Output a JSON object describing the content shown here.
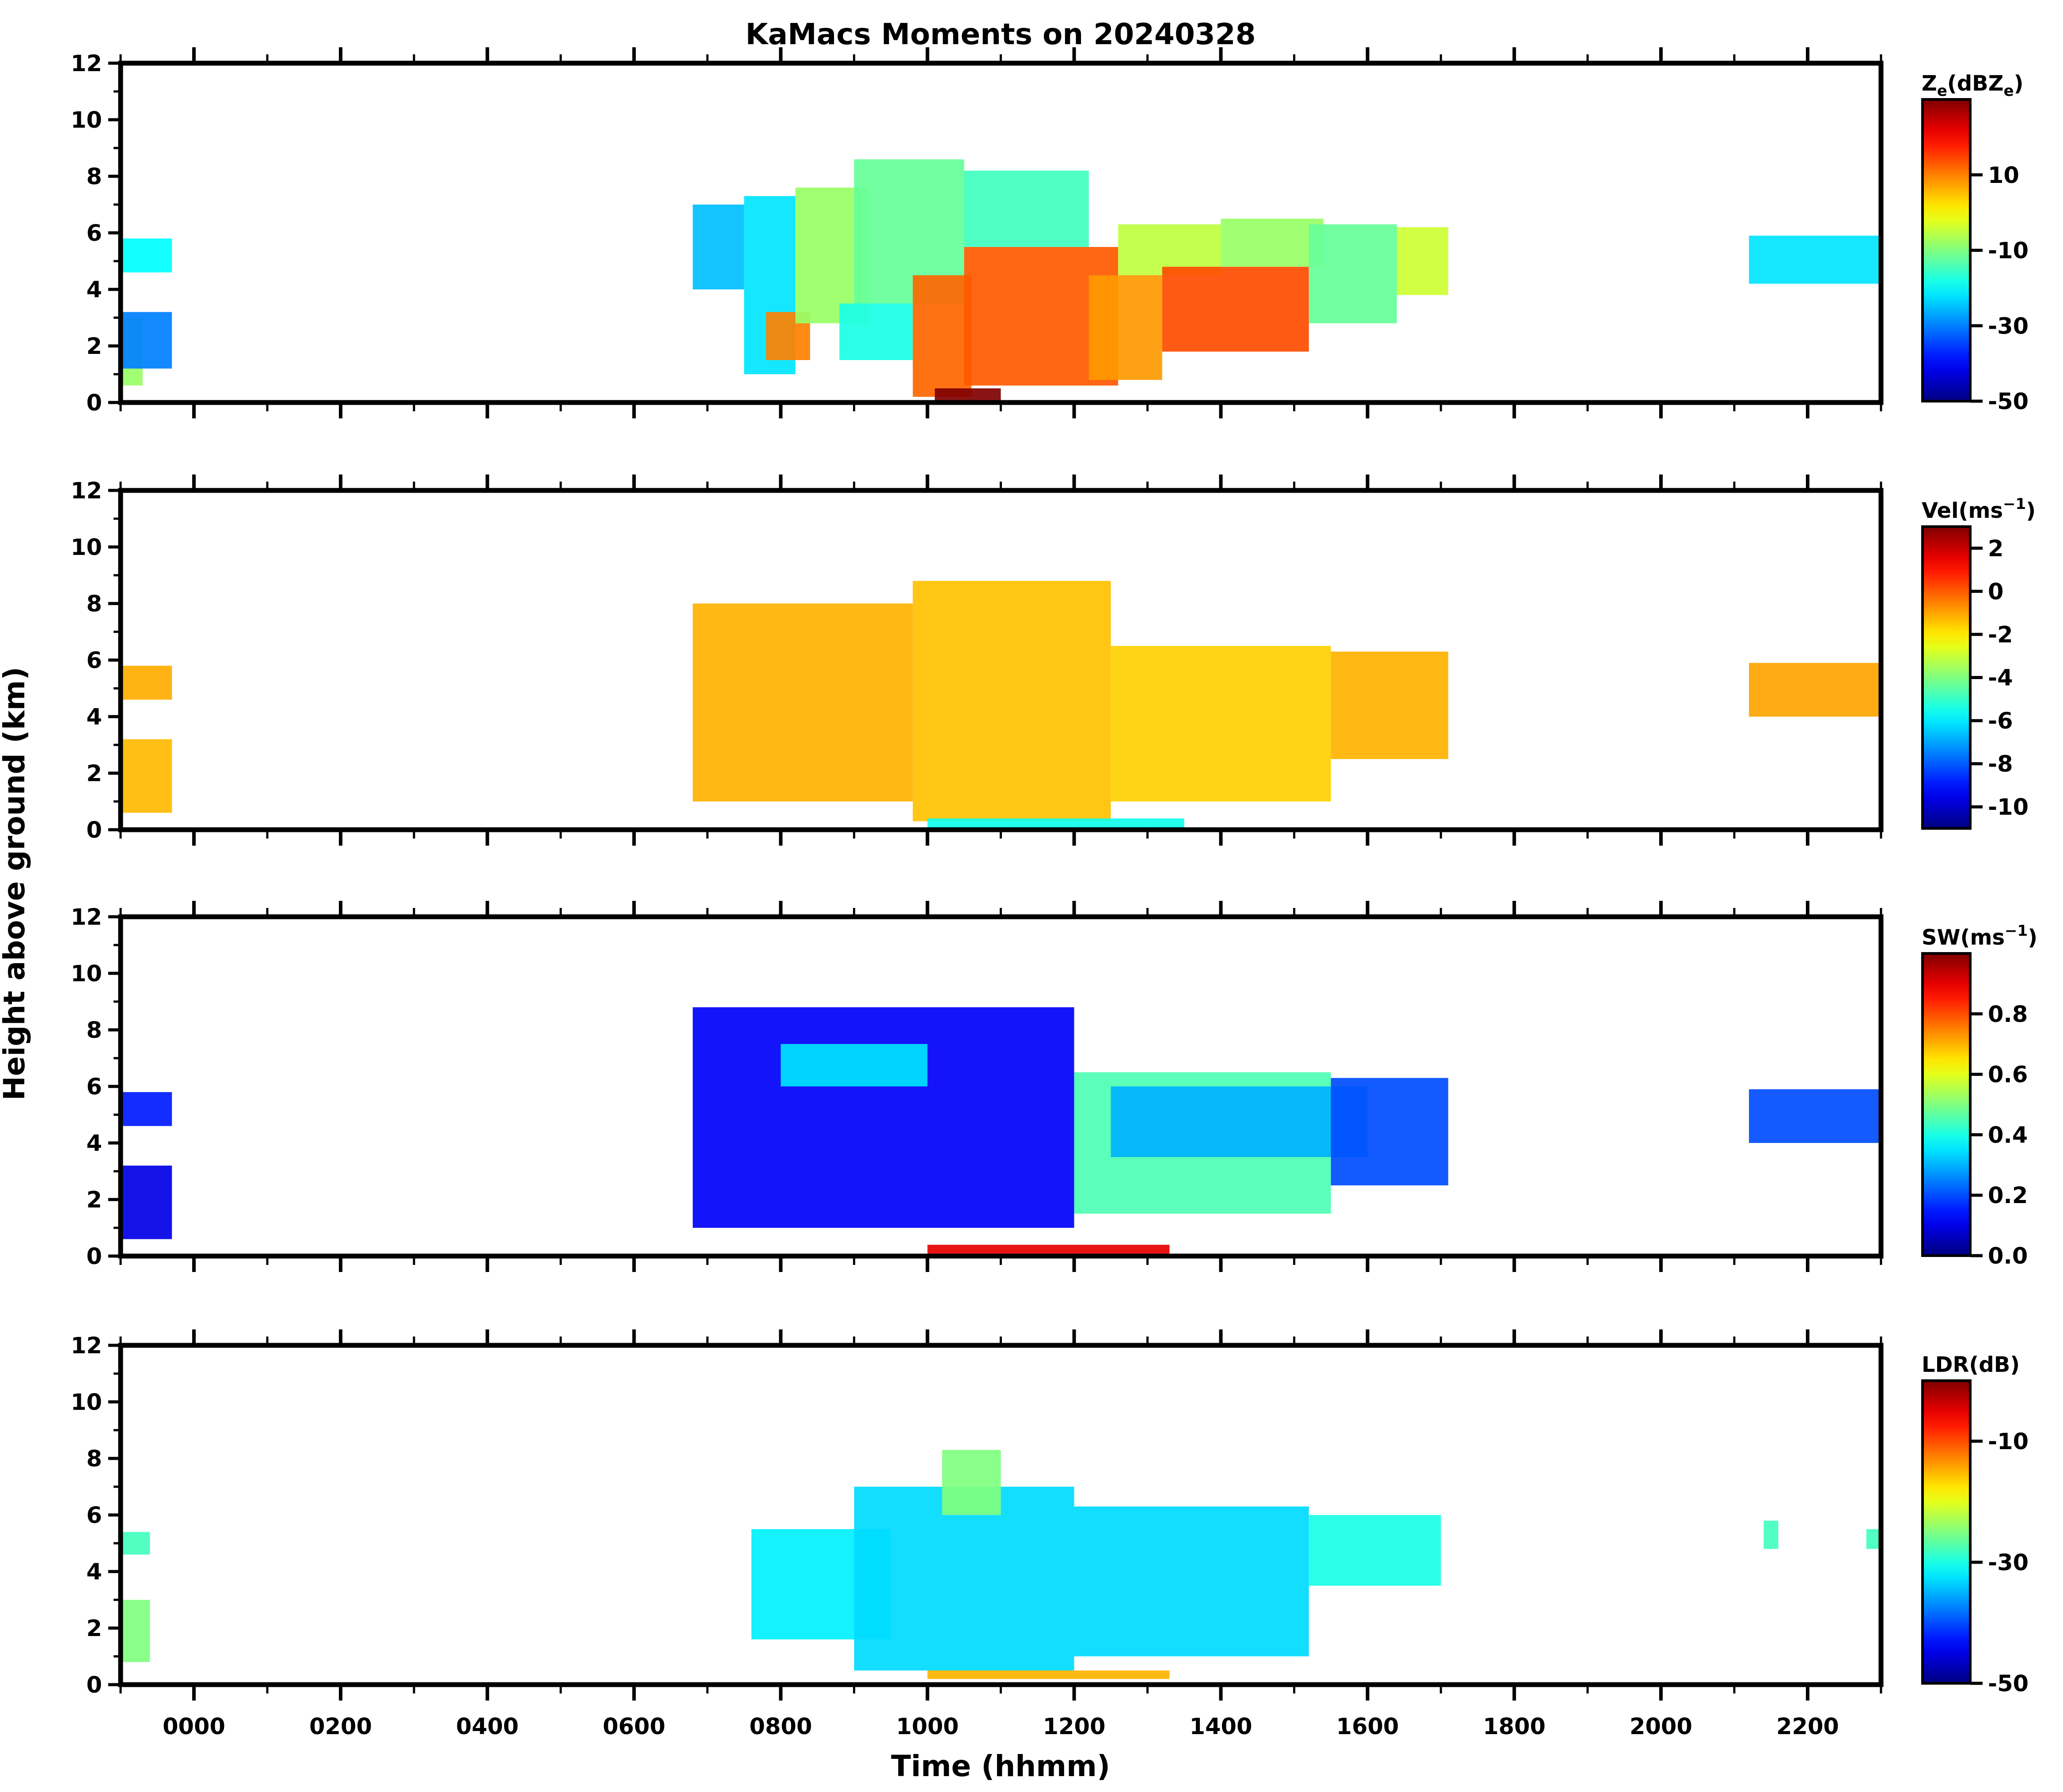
{
  "chart_data": {
    "type": "heatmap",
    "title": "KaMacs Moments on 20240328",
    "xlabel": "Time (hhmm)",
    "ylabel": "Height above ground (km)",
    "x_domain_hours": [
      -1,
      23
    ],
    "x_ticks": [
      0,
      2,
      4,
      6,
      8,
      10,
      12,
      14,
      16,
      18,
      20,
      22
    ],
    "x_ticklabels": [
      "0000",
      "0200",
      "0400",
      "0600",
      "0800",
      "1000",
      "1200",
      "1400",
      "1600",
      "1800",
      "2000",
      "2200"
    ],
    "ylim": [
      0,
      12
    ],
    "y_ticks": [
      0,
      2,
      4,
      6,
      8,
      10,
      12
    ],
    "panels": [
      {
        "name": "Ze",
        "colorbar_label": "Ze(dBZe)",
        "colorbar_label_main": "Z",
        "colorbar_label_sub": "e",
        "colorbar_label_mid": "(dBZ",
        "colorbar_label_sub2": "e",
        "colorbar_label_end": ")",
        "clim": [
          -50,
          30
        ],
        "cbar_ticks": [
          -50,
          -30,
          -10,
          10
        ],
        "cells": [
          {
            "t0": -1.0,
            "t1": -0.7,
            "z0": 0.6,
            "z1": 3.0,
            "v": -8
          },
          {
            "t0": -1.0,
            "t1": -0.3,
            "z0": 1.2,
            "z1": 3.2,
            "v": -30
          },
          {
            "t0": -1.0,
            "t1": -0.3,
            "z0": 4.6,
            "z1": 5.8,
            "v": -20
          },
          {
            "t0": 6.8,
            "t1": 7.5,
            "z0": 4.0,
            "z1": 7.0,
            "v": -25
          },
          {
            "t0": 7.5,
            "t1": 8.2,
            "z0": 1.0,
            "z1": 7.3,
            "v": -22
          },
          {
            "t0": 7.8,
            "t1": 8.4,
            "z0": 1.5,
            "z1": 3.2,
            "v": 10
          },
          {
            "t0": 8.2,
            "t1": 9.2,
            "z0": 2.8,
            "z1": 7.6,
            "v": -8
          },
          {
            "t0": 8.8,
            "t1": 9.8,
            "z0": 1.5,
            "z1": 3.5,
            "v": -18
          },
          {
            "t0": 9.0,
            "t1": 10.5,
            "z0": 3.5,
            "z1": 8.6,
            "v": -12
          },
          {
            "t0": 9.8,
            "t1": 10.6,
            "z0": 0.2,
            "z1": 4.5,
            "v": 12
          },
          {
            "t0": 10.5,
            "t1": 12.2,
            "z0": 5.5,
            "z1": 8.2,
            "v": -15
          },
          {
            "t0": 10.5,
            "t1": 12.6,
            "z0": 0.6,
            "z1": 5.5,
            "v": 13
          },
          {
            "t0": 12.2,
            "t1": 13.2,
            "z0": 0.8,
            "z1": 4.5,
            "v": 8
          },
          {
            "t0": 12.6,
            "t1": 14.0,
            "z0": 4.5,
            "z1": 6.3,
            "v": -5
          },
          {
            "t0": 13.2,
            "t1": 15.2,
            "z0": 1.8,
            "z1": 4.8,
            "v": 14
          },
          {
            "t0": 14.0,
            "t1": 15.4,
            "z0": 4.8,
            "z1": 6.5,
            "v": -8
          },
          {
            "t0": 15.2,
            "t1": 16.4,
            "z0": 2.8,
            "z1": 6.3,
            "v": -12
          },
          {
            "t0": 16.4,
            "t1": 17.1,
            "z0": 3.8,
            "z1": 6.2,
            "v": -4
          },
          {
            "t0": 21.2,
            "t1": 23.0,
            "z0": 4.2,
            "z1": 5.9,
            "v": -22
          },
          {
            "t0": 10.1,
            "t1": 11.0,
            "z0": 0.0,
            "z1": 0.5,
            "v": 30
          }
        ]
      },
      {
        "name": "Vel",
        "colorbar_label": "Vel(ms−1)",
        "colorbar_label_main": "Vel(ms",
        "colorbar_label_sup": "−1",
        "colorbar_label_end": ")",
        "clim": [
          -11,
          3
        ],
        "cbar_ticks": [
          -10,
          -8,
          -6,
          -4,
          -2,
          0,
          2
        ],
        "cells": [
          {
            "t0": -1.0,
            "t1": -0.3,
            "z0": 0.6,
            "z1": 3.2,
            "v": -1.3
          },
          {
            "t0": -1.0,
            "t1": -0.3,
            "z0": 4.6,
            "z1": 5.8,
            "v": -1.1
          },
          {
            "t0": 6.8,
            "t1": 9.8,
            "z0": 1.0,
            "z1": 8.0,
            "v": -1.2
          },
          {
            "t0": 9.8,
            "t1": 12.5,
            "z0": 0.3,
            "z1": 8.8,
            "v": -1.4
          },
          {
            "t0": 12.5,
            "t1": 15.5,
            "z0": 1.0,
            "z1": 6.5,
            "v": -1.6
          },
          {
            "t0": 15.5,
            "t1": 17.1,
            "z0": 2.5,
            "z1": 6.3,
            "v": -1.2
          },
          {
            "t0": 10.0,
            "t1": 13.5,
            "z0": 0.0,
            "z1": 0.4,
            "v": -5.5
          },
          {
            "t0": 21.2,
            "t1": 23.0,
            "z0": 4.0,
            "z1": 5.9,
            "v": -1.0
          }
        ]
      },
      {
        "name": "SW",
        "colorbar_label": "SW(ms−1)",
        "colorbar_label_main": "SW(ms",
        "colorbar_label_sup": "−1",
        "colorbar_label_end": ")",
        "clim": [
          0.0,
          1.0
        ],
        "cbar_ticks": [
          0.0,
          0.2,
          0.4,
          0.6,
          0.8
        ],
        "cells": [
          {
            "t0": -1.0,
            "t1": -0.3,
            "z0": 0.6,
            "z1": 3.2,
            "v": 0.1
          },
          {
            "t0": -1.0,
            "t1": -0.3,
            "z0": 4.6,
            "z1": 5.8,
            "v": 0.15
          },
          {
            "t0": 6.8,
            "t1": 12.0,
            "z0": 1.0,
            "z1": 8.8,
            "v": 0.12
          },
          {
            "t0": 8.0,
            "t1": 10.0,
            "z0": 6.0,
            "z1": 7.5,
            "v": 0.35
          },
          {
            "t0": 12.0,
            "t1": 15.5,
            "z0": 1.5,
            "z1": 6.5,
            "v": 0.45
          },
          {
            "t0": 12.5,
            "t1": 16.0,
            "z0": 3.5,
            "z1": 6.0,
            "v": 0.3
          },
          {
            "t0": 15.5,
            "t1": 17.1,
            "z0": 2.5,
            "z1": 6.3,
            "v": 0.2
          },
          {
            "t0": 10.0,
            "t1": 13.3,
            "z0": 0.0,
            "z1": 0.4,
            "v": 0.9
          },
          {
            "t0": 21.2,
            "t1": 23.0,
            "z0": 4.0,
            "z1": 5.9,
            "v": 0.2
          }
        ]
      },
      {
        "name": "LDR",
        "colorbar_label": "LDR(dB)",
        "colorbar_label_main": "LDR(dB)",
        "clim": [
          -50,
          0
        ],
        "cbar_ticks": [
          -50,
          -30,
          -10
        ],
        "cells": [
          {
            "t0": -1.0,
            "t1": -0.6,
            "z0": 0.8,
            "z1": 3.0,
            "v": -25
          },
          {
            "t0": -1.0,
            "t1": -0.6,
            "z0": 4.6,
            "z1": 5.4,
            "v": -28
          },
          {
            "t0": 7.6,
            "t1": 9.5,
            "z0": 1.6,
            "z1": 5.5,
            "v": -32
          },
          {
            "t0": 9.0,
            "t1": 12.0,
            "z0": 0.5,
            "z1": 7.0,
            "v": -33
          },
          {
            "t0": 10.2,
            "t1": 11.0,
            "z0": 6.0,
            "z1": 8.3,
            "v": -25
          },
          {
            "t0": 12.0,
            "t1": 15.2,
            "z0": 1.0,
            "z1": 6.3,
            "v": -33
          },
          {
            "t0": 15.2,
            "t1": 17.0,
            "z0": 3.5,
            "z1": 6.0,
            "v": -30
          },
          {
            "t0": 10.0,
            "t1": 13.3,
            "z0": 0.2,
            "z1": 0.5,
            "v": -15
          },
          {
            "t0": 21.4,
            "t1": 21.6,
            "z0": 4.8,
            "z1": 5.8,
            "v": -28
          },
          {
            "t0": 22.8,
            "t1": 23.0,
            "z0": 4.8,
            "z1": 5.5,
            "v": -28
          }
        ]
      }
    ]
  }
}
